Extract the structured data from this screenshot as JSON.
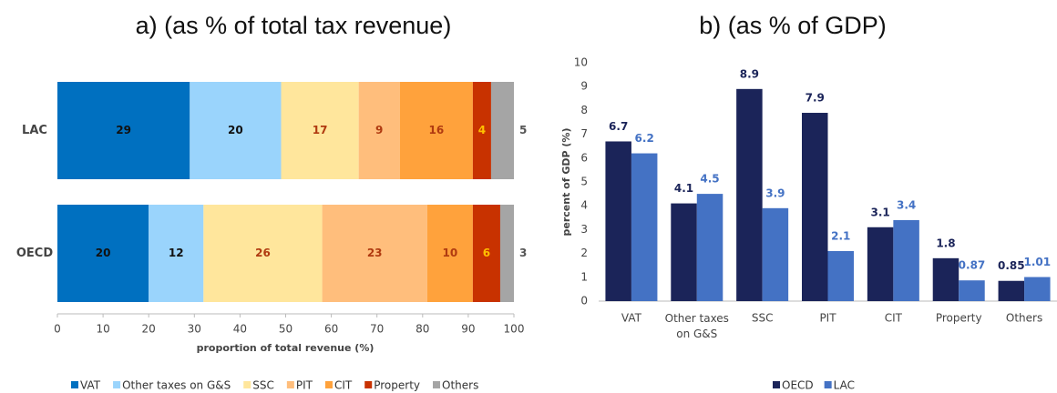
{
  "chart_data": [
    {
      "type": "bar",
      "orientation": "horizontal",
      "stacked": true,
      "title": "a) (as % of total tax revenue)",
      "xlabel": "proportion of total revenue (%)",
      "categories": [
        "LAC",
        "OECD"
      ],
      "series": [
        {
          "name": "VAT",
          "color": "#0070c0",
          "label_color": "#111111",
          "values": [
            29,
            20
          ]
        },
        {
          "name": "Other taxes on G&S",
          "color": "#9ad4fc",
          "label_color": "#111111",
          "values": [
            20,
            12
          ]
        },
        {
          "name": "SSC",
          "color": "#ffe69c",
          "label_color": "#b03a10",
          "values": [
            17,
            26
          ]
        },
        {
          "name": "PIT",
          "color": "#ffbe7c",
          "label_color": "#b03a10",
          "values": [
            9,
            23
          ]
        },
        {
          "name": "CIT",
          "color": "#ffa23c",
          "label_color": "#b03a10",
          "values": [
            16,
            10
          ]
        },
        {
          "name": "Property",
          "color": "#c83200",
          "label_color": "#ffc000",
          "values": [
            4,
            6
          ]
        },
        {
          "name": "Others",
          "color": "#a5a5a5",
          "label_color": "#555555",
          "values": [
            5,
            3
          ]
        }
      ],
      "xlim": [
        0,
        100
      ],
      "xticks": [
        0,
        10,
        20,
        30,
        40,
        50,
        60,
        70,
        80,
        90,
        100
      ]
    },
    {
      "type": "bar",
      "stacked": false,
      "title": "b) (as % of GDP)",
      "ylabel": "percent of GDP (%)",
      "categories": [
        "VAT",
        "Other taxes on G&S",
        "SSC",
        "PIT",
        "CIT",
        "Property",
        "Others"
      ],
      "series": [
        {
          "name": "OECD",
          "color": "#1b2459",
          "values": [
            6.7,
            4.1,
            8.9,
            7.9,
            3.1,
            1.8,
            0.85
          ]
        },
        {
          "name": "LAC",
          "color": "#4472c4",
          "values": [
            6.2,
            4.5,
            3.9,
            2.1,
            3.4,
            0.87,
            1.01
          ]
        }
      ],
      "ylim": [
        0,
        10
      ],
      "yticks": [
        0,
        1,
        2,
        3,
        4,
        5,
        6,
        7,
        8,
        9,
        10
      ]
    }
  ]
}
